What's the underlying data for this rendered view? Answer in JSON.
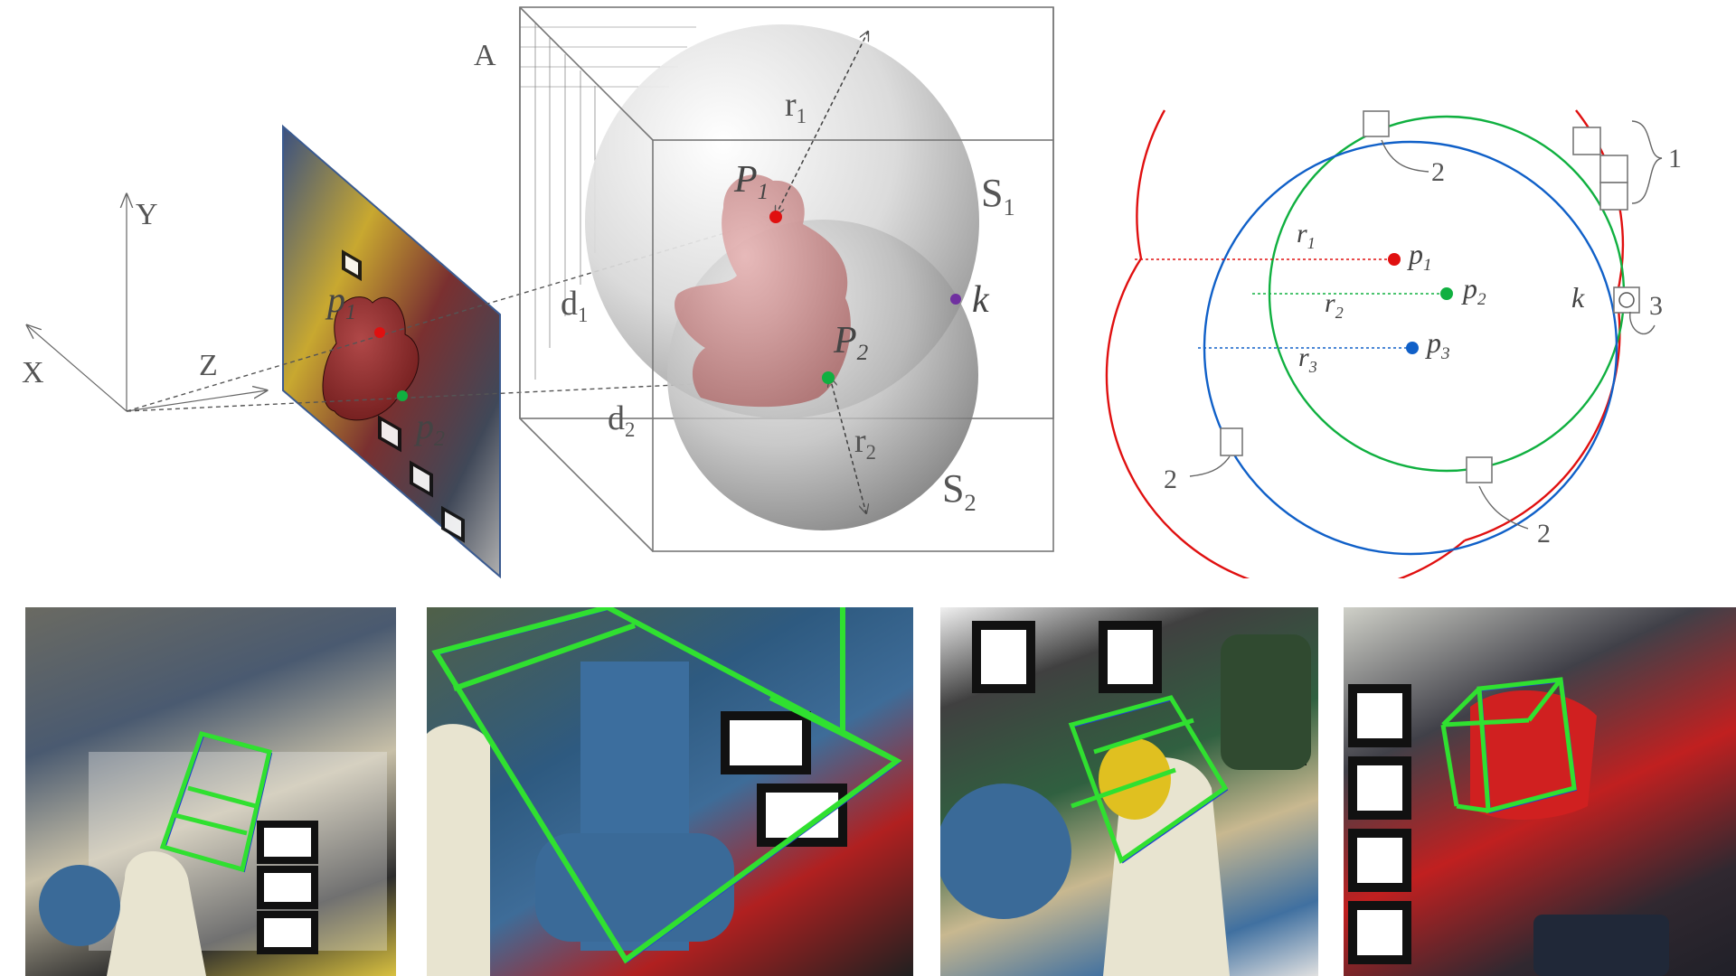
{
  "camera_diagram": {
    "axes": {
      "x": "X",
      "y": "Y",
      "z": "Z"
    },
    "image_points": [
      {
        "letter": "p",
        "index": "1",
        "color": "#e01010"
      },
      {
        "letter": "p",
        "index": "2",
        "color": "#10b040"
      }
    ]
  },
  "volume_diagram": {
    "grid_label": "A",
    "distances": [
      {
        "letter": "d",
        "index": "1"
      },
      {
        "letter": "d",
        "index": "2"
      }
    ],
    "radii": [
      {
        "letter": "r",
        "index": "1"
      },
      {
        "letter": "r",
        "index": "2"
      }
    ],
    "spheres": [
      {
        "letter": "S",
        "index": "1"
      },
      {
        "letter": "S",
        "index": "2"
      }
    ],
    "points": [
      {
        "letter": "P",
        "index": "1",
        "color": "#e01010"
      },
      {
        "letter": "P",
        "index": "2",
        "color": "#10b040"
      }
    ],
    "intersection": {
      "label": "k",
      "color": "#7030a0"
    }
  },
  "circle_diagram": {
    "circles": [
      {
        "color": "#e01010"
      },
      {
        "color": "#10b040"
      },
      {
        "color": "#1060c8"
      }
    ],
    "radii": [
      {
        "letter": "r",
        "index": "1"
      },
      {
        "letter": "r",
        "index": "2"
      },
      {
        "letter": "r",
        "index": "3"
      }
    ],
    "centers": [
      {
        "letter": "p",
        "index": "1",
        "color": "#e01010"
      },
      {
        "letter": "p",
        "index": "2",
        "color": "#10b040"
      },
      {
        "letter": "p",
        "index": "3",
        "color": "#1060c8"
      }
    ],
    "intersection_label": "k",
    "callouts": {
      "one": "1",
      "two": "2",
      "three": "3"
    }
  },
  "result_photos": {
    "box_color": "#30e030",
    "edge_color": "#2040d0",
    "count": 4
  }
}
